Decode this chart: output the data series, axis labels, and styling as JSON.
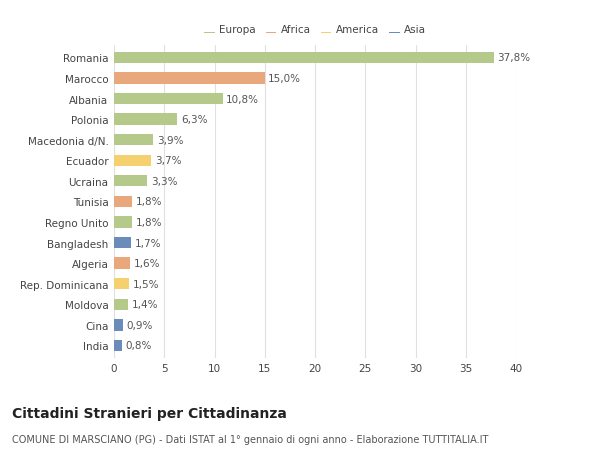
{
  "categories": [
    "Romania",
    "Marocco",
    "Albania",
    "Polonia",
    "Macedonia d/N.",
    "Ecuador",
    "Ucraina",
    "Tunisia",
    "Regno Unito",
    "Bangladesh",
    "Algeria",
    "Rep. Dominicana",
    "Moldova",
    "Cina",
    "India"
  ],
  "values": [
    37.8,
    15.0,
    10.8,
    6.3,
    3.9,
    3.7,
    3.3,
    1.8,
    1.8,
    1.7,
    1.6,
    1.5,
    1.4,
    0.9,
    0.8
  ],
  "labels": [
    "37,8%",
    "15,0%",
    "10,8%",
    "6,3%",
    "3,9%",
    "3,7%",
    "3,3%",
    "1,8%",
    "1,8%",
    "1,7%",
    "1,6%",
    "1,5%",
    "1,4%",
    "0,9%",
    "0,8%"
  ],
  "continents": [
    "Europa",
    "Africa",
    "Europa",
    "Europa",
    "Europa",
    "America",
    "Europa",
    "Africa",
    "Europa",
    "Asia",
    "Africa",
    "America",
    "Europa",
    "Asia",
    "Asia"
  ],
  "continent_colors": {
    "Europa": "#b5c98a",
    "Africa": "#e8a87c",
    "America": "#f5d06e",
    "Asia": "#6b8cba"
  },
  "legend_order": [
    "Europa",
    "Africa",
    "America",
    "Asia"
  ],
  "title": "Cittadini Stranieri per Cittadinanza",
  "subtitle": "COMUNE DI MARSCIANO (PG) - Dati ISTAT al 1° gennaio di ogni anno - Elaborazione TUTTITALIA.IT",
  "xlim": [
    0,
    40
  ],
  "xticks": [
    0,
    5,
    10,
    15,
    20,
    25,
    30,
    35,
    40
  ],
  "background_color": "#ffffff",
  "grid_color": "#e0e0e0",
  "bar_height": 0.55,
  "label_fontsize": 7.5,
  "tick_fontsize": 7.5,
  "title_fontsize": 10,
  "subtitle_fontsize": 7
}
